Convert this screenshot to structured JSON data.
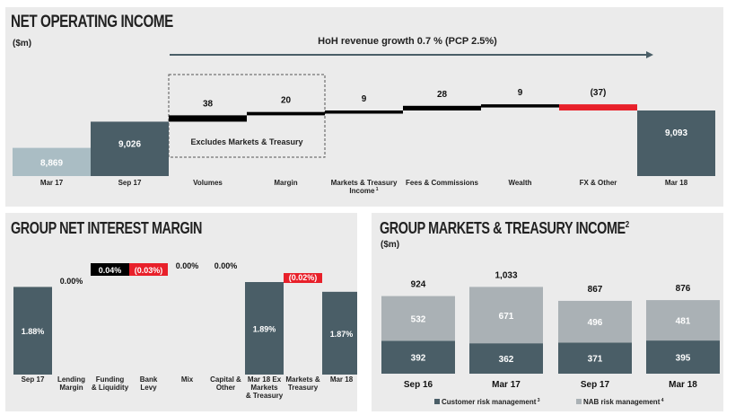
{
  "chart_data": [
    {
      "type": "bar",
      "subtype": "waterfall",
      "title": "NET OPERATING INCOME",
      "unit": "($m)",
      "banner": "HoH revenue growth 0.7 % (PCP 2.5%)",
      "box_label": "Excludes Markets & Treasury",
      "categories": [
        "Mar 17",
        "Sep 17",
        "Volumes",
        "Margin",
        "Markets & Treasury Income",
        "Fees & Commissions",
        "Wealth",
        "FX & Other",
        "Mar 18"
      ],
      "category_sup": [
        "",
        "",
        "",
        "",
        "1",
        "",
        "",
        "",
        ""
      ],
      "values": [
        8869,
        9026,
        38,
        20,
        9,
        28,
        9,
        -37,
        9093
      ],
      "labels": [
        "8,869",
        "9,026",
        "38",
        "20",
        "9",
        "28",
        "9",
        "(37)",
        "9,093"
      ],
      "kind": [
        "total",
        "total",
        "delta",
        "delta",
        "delta",
        "delta",
        "delta",
        "delta",
        "total"
      ],
      "colors": {
        "light_total": "#aabdc4",
        "dark_total": "#4a5e67",
        "positive": "#000000",
        "negative": "#e8202a"
      }
    },
    {
      "type": "bar",
      "subtype": "waterfall",
      "title": "GROUP NET INTEREST MARGIN",
      "categories": [
        "Sep 17",
        "Lending Margin",
        "Funding & Liquidity",
        "Bank Levy",
        "Mix",
        "Capital & Other",
        "Mar 18 Ex Markets & Treasury",
        "Markets & Treasury",
        "Mar 18"
      ],
      "values": [
        1.88,
        0.0,
        0.04,
        -0.03,
        0.0,
        0.0,
        1.89,
        -0.02,
        1.87
      ],
      "labels": [
        "1.88%",
        "0.00%",
        "0.04%",
        "(0.03%)",
        "0.00%",
        "0.00%",
        "1.89%",
        "(0.02%)",
        "1.87%"
      ],
      "kind": [
        "total",
        "delta",
        "delta",
        "delta",
        "delta",
        "delta",
        "total",
        "delta",
        "total"
      ],
      "colors": {
        "total": "#4a5e67",
        "positive": "#000000",
        "negative": "#e8202a"
      }
    },
    {
      "type": "bar",
      "subtype": "stacked",
      "title": "GROUP MARKETS & TREASURY INCOME",
      "title_sup": "2",
      "unit": "($m)",
      "categories": [
        "Sep 16",
        "Mar 17",
        "Sep 17",
        "Mar 18"
      ],
      "totals": [
        924,
        1033,
        867,
        876
      ],
      "total_labels": [
        "924",
        "1,033",
        "867",
        "876"
      ],
      "series": [
        {
          "name": "Customer risk management",
          "sup": "3",
          "values": [
            392,
            362,
            371,
            395
          ],
          "color": "#4a5e67"
        },
        {
          "name": "NAB risk management",
          "sup": "4",
          "values": [
            532,
            671,
            496,
            481
          ],
          "color": "#aab1b5"
        }
      ]
    }
  ]
}
